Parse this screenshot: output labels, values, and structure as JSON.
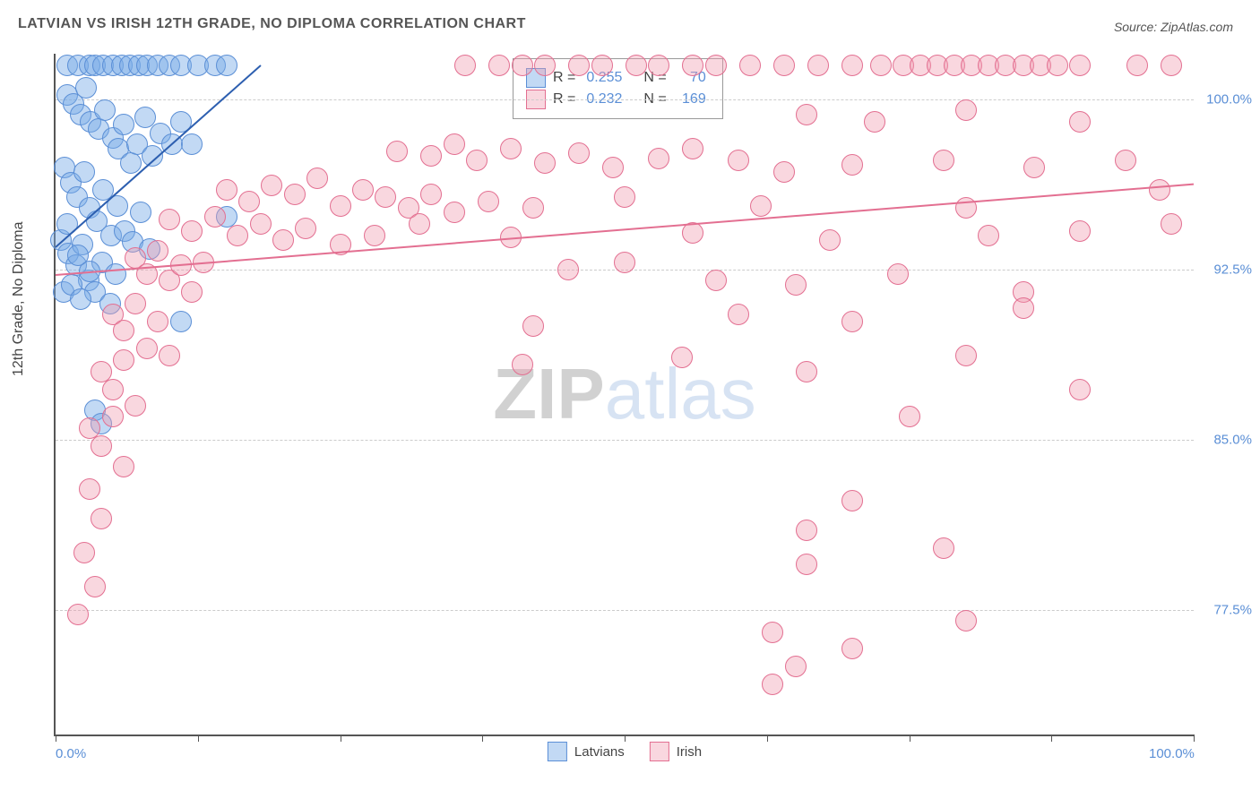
{
  "title": "LATVIAN VS IRISH 12TH GRADE, NO DIPLOMA CORRELATION CHART",
  "source": "Source: ZipAtlas.com",
  "ylabel": "12th Grade, No Diploma",
  "watermark_zip": "ZIP",
  "watermark_atlas": "atlas",
  "chart": {
    "type": "scatter",
    "xlim": [
      0,
      100
    ],
    "ylim": [
      72,
      102
    ],
    "x_tick_positions": [
      0,
      12.5,
      25,
      37.5,
      50,
      62.5,
      75,
      87.5,
      100
    ],
    "x_tick_labels_shown": {
      "0": "0.0%",
      "100": "100.0%"
    },
    "y_ticks": [
      77.5,
      85.0,
      92.5,
      100.0
    ],
    "y_tick_labels": [
      "77.5%",
      "85.0%",
      "92.5%",
      "100.0%"
    ],
    "grid_color": "#cccccc",
    "axis_color": "#555555",
    "background_color": "#ffffff",
    "point_radius": 11,
    "series": [
      {
        "name": "Latvians",
        "fill": "rgba(120,170,230,0.45)",
        "stroke": "#5b8fd6",
        "trend": {
          "x1": 0,
          "y1": 93.5,
          "x2": 18,
          "y2": 101.5,
          "color": "#2d5fb0",
          "width": 2
        },
        "R": "0.255",
        "N": "70",
        "points": [
          [
            1,
            101.5
          ],
          [
            2,
            101.5
          ],
          [
            3,
            101.5
          ],
          [
            3.5,
            101.5
          ],
          [
            4.2,
            101.5
          ],
          [
            5,
            101.5
          ],
          [
            5.8,
            101.5
          ],
          [
            6.5,
            101.5
          ],
          [
            7.3,
            101.5
          ],
          [
            8,
            101.5
          ],
          [
            9,
            101.5
          ],
          [
            10,
            101.5
          ],
          [
            11,
            101.5
          ],
          [
            12.5,
            101.5
          ],
          [
            14,
            101.5
          ],
          [
            15,
            101.5
          ],
          [
            1,
            100.2
          ],
          [
            1.6,
            99.8
          ],
          [
            2.2,
            99.3
          ],
          [
            2.7,
            100.5
          ],
          [
            3.1,
            99
          ],
          [
            3.8,
            98.7
          ],
          [
            4.3,
            99.5
          ],
          [
            5,
            98.3
          ],
          [
            5.5,
            97.8
          ],
          [
            6,
            98.9
          ],
          [
            6.6,
            97.2
          ],
          [
            7.2,
            98
          ],
          [
            7.9,
            99.2
          ],
          [
            8.5,
            97.5
          ],
          [
            9.2,
            98.5
          ],
          [
            10.2,
            98
          ],
          [
            11,
            99
          ],
          [
            12,
            98
          ],
          [
            0.8,
            97
          ],
          [
            1.3,
            96.3
          ],
          [
            1.9,
            95.7
          ],
          [
            2.5,
            96.8
          ],
          [
            3,
            95.2
          ],
          [
            3.6,
            94.6
          ],
          [
            4.2,
            96
          ],
          [
            4.9,
            94
          ],
          [
            5.4,
            95.3
          ],
          [
            6.1,
            94.2
          ],
          [
            6.8,
            93.7
          ],
          [
            7.5,
            95
          ],
          [
            8.3,
            93.4
          ],
          [
            0.5,
            93.8
          ],
          [
            1.1,
            93.2
          ],
          [
            1.8,
            92.7
          ],
          [
            2.4,
            93.6
          ],
          [
            2.9,
            92
          ],
          [
            3.5,
            91.5
          ],
          [
            4.1,
            92.8
          ],
          [
            4.8,
            91
          ],
          [
            5.3,
            92.3
          ],
          [
            0.7,
            91.5
          ],
          [
            1.4,
            91.8
          ],
          [
            2.2,
            91.2
          ],
          [
            3,
            92.4
          ],
          [
            1,
            94.5
          ],
          [
            2,
            93.1
          ],
          [
            3.5,
            86.3
          ],
          [
            11,
            90.2
          ],
          [
            4,
            85.7
          ],
          [
            15,
            94.8
          ]
        ]
      },
      {
        "name": "Irish",
        "fill": "rgba(240,155,175,0.40)",
        "stroke": "#e36f91",
        "trend": {
          "x1": 0,
          "y1": 92.3,
          "x2": 100,
          "y2": 96.3,
          "color": "#e36f91",
          "width": 2
        },
        "R": "0.232",
        "N": "169",
        "points": [
          [
            36,
            101.5
          ],
          [
            39,
            101.5
          ],
          [
            41,
            101.5
          ],
          [
            43,
            101.5
          ],
          [
            46,
            101.5
          ],
          [
            48,
            101.5
          ],
          [
            51,
            101.5
          ],
          [
            53,
            101.5
          ],
          [
            56,
            101.5
          ],
          [
            58,
            101.5
          ],
          [
            61,
            101.5
          ],
          [
            64,
            101.5
          ],
          [
            67,
            101.5
          ],
          [
            70,
            101.5
          ],
          [
            72.5,
            101.5
          ],
          [
            74.5,
            101.5
          ],
          [
            76,
            101.5
          ],
          [
            77.5,
            101.5
          ],
          [
            79,
            101.5
          ],
          [
            80.5,
            101.5
          ],
          [
            82,
            101.5
          ],
          [
            83.5,
            101.5
          ],
          [
            85,
            101.5
          ],
          [
            86.5,
            101.5
          ],
          [
            88,
            101.5
          ],
          [
            90,
            101.5
          ],
          [
            95,
            101.5
          ],
          [
            98,
            101.5
          ],
          [
            66,
            99.3
          ],
          [
            72,
            99
          ],
          [
            80,
            99.5
          ],
          [
            90,
            99
          ],
          [
            30,
            97.7
          ],
          [
            33,
            97.5
          ],
          [
            35,
            98
          ],
          [
            37,
            97.3
          ],
          [
            40,
            97.8
          ],
          [
            43,
            97.2
          ],
          [
            46,
            97.6
          ],
          [
            49,
            97
          ],
          [
            53,
            97.4
          ],
          [
            56,
            97.8
          ],
          [
            60,
            97.3
          ],
          [
            64,
            96.8
          ],
          [
            70,
            97.1
          ],
          [
            78,
            97.3
          ],
          [
            86,
            97
          ],
          [
            94,
            97.3
          ],
          [
            15,
            96
          ],
          [
            17,
            95.5
          ],
          [
            19,
            96.2
          ],
          [
            21,
            95.8
          ],
          [
            23,
            96.5
          ],
          [
            25,
            95.3
          ],
          [
            27,
            96
          ],
          [
            29,
            95.7
          ],
          [
            31,
            95.2
          ],
          [
            33,
            95.8
          ],
          [
            35,
            95
          ],
          [
            38,
            95.5
          ],
          [
            42,
            95.2
          ],
          [
            50,
            95.7
          ],
          [
            62,
            95.3
          ],
          [
            80,
            95.2
          ],
          [
            97,
            96
          ],
          [
            10,
            94.7
          ],
          [
            12,
            94.2
          ],
          [
            14,
            94.8
          ],
          [
            16,
            94
          ],
          [
            18,
            94.5
          ],
          [
            20,
            93.8
          ],
          [
            22,
            94.3
          ],
          [
            25,
            93.6
          ],
          [
            28,
            94
          ],
          [
            32,
            94.5
          ],
          [
            40,
            93.9
          ],
          [
            56,
            94.1
          ],
          [
            68,
            93.8
          ],
          [
            82,
            94
          ],
          [
            90,
            94.2
          ],
          [
            98,
            94.5
          ],
          [
            7,
            93
          ],
          [
            8,
            92.3
          ],
          [
            9,
            93.3
          ],
          [
            10,
            92
          ],
          [
            11,
            92.7
          ],
          [
            12,
            91.5
          ],
          [
            13,
            92.8
          ],
          [
            45,
            92.5
          ],
          [
            50,
            92.8
          ],
          [
            58,
            92
          ],
          [
            65,
            91.8
          ],
          [
            74,
            92.3
          ],
          [
            85,
            91.5
          ],
          [
            5,
            90.5
          ],
          [
            6,
            89.8
          ],
          [
            7,
            91
          ],
          [
            8,
            89
          ],
          [
            9,
            90.2
          ],
          [
            10,
            88.7
          ],
          [
            42,
            90
          ],
          [
            60,
            90.5
          ],
          [
            70,
            90.2
          ],
          [
            85,
            90.8
          ],
          [
            4,
            88
          ],
          [
            5,
            87.2
          ],
          [
            6,
            88.5
          ],
          [
            7,
            86.5
          ],
          [
            41,
            88.3
          ],
          [
            55,
            88.6
          ],
          [
            66,
            88
          ],
          [
            80,
            88.7
          ],
          [
            3,
            85.5
          ],
          [
            4,
            84.7
          ],
          [
            5,
            86
          ],
          [
            6,
            83.8
          ],
          [
            75,
            86
          ],
          [
            90,
            87.2
          ],
          [
            3,
            82.8
          ],
          [
            4,
            81.5
          ],
          [
            66,
            81
          ],
          [
            70,
            82.3
          ],
          [
            2.5,
            80
          ],
          [
            3.5,
            78.5
          ],
          [
            66,
            79.5
          ],
          [
            78,
            80.2
          ],
          [
            2,
            77.3
          ],
          [
            63,
            76.5
          ],
          [
            80,
            77
          ],
          [
            65,
            75
          ],
          [
            70,
            75.8
          ],
          [
            63,
            74.2
          ]
        ]
      }
    ]
  },
  "legend_top": {
    "rows": [
      {
        "swatch_fill": "rgba(120,170,230,0.45)",
        "swatch_stroke": "#5b8fd6",
        "R_label": "R =",
        "R_val": "0.255",
        "N_label": "N =",
        "N_val": "70"
      },
      {
        "swatch_fill": "rgba(240,155,175,0.40)",
        "swatch_stroke": "#e36f91",
        "R_label": "R =",
        "R_val": "0.232",
        "N_label": "N =",
        "N_val": "169"
      }
    ]
  },
  "legend_bottom": [
    {
      "swatch_fill": "rgba(120,170,230,0.45)",
      "swatch_stroke": "#5b8fd6",
      "label": "Latvians"
    },
    {
      "swatch_fill": "rgba(240,155,175,0.40)",
      "swatch_stroke": "#e36f91",
      "label": "Irish"
    }
  ]
}
